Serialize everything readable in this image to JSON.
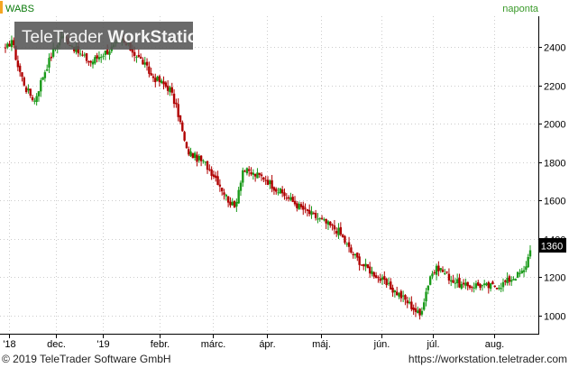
{
  "header": {
    "symbol": "WABS",
    "interval": "naponta"
  },
  "watermark": {
    "part1": "TeleTrader ",
    "part2": "WorkStation"
  },
  "footer": {
    "copyright": "© 2019 TeleTrader Software GmbH",
    "url": "https://workstation.teletrader.com"
  },
  "colors": {
    "up": "#1a9a1a",
    "down": "#b00000",
    "axis": "#000000",
    "grid": "#cccccc",
    "header_accent": "#f5a623",
    "interval_text": "#3a9a2a",
    "symbol_text": "#0a7a0a"
  },
  "chart_data": {
    "type": "candlestick",
    "title": "WABS",
    "ylim": [
      905,
      2560
    ],
    "y_ticks": [
      1000,
      1200,
      1400,
      1600,
      1800,
      2000,
      2200,
      2400
    ],
    "x_tick_labels": [
      "'18",
      "dec.",
      "'19",
      "febr.",
      "márc.",
      "ápr.",
      "máj.",
      "jún.",
      "júl.",
      "aug."
    ],
    "last_price": "1360",
    "series": [
      {
        "anchors": [
          [
            0,
            2380
          ],
          [
            3,
            2440
          ],
          [
            6,
            2300
          ],
          [
            10,
            2180
          ],
          [
            14,
            2120
          ],
          [
            18,
            2250
          ],
          [
            23,
            2380
          ],
          [
            27,
            2460
          ],
          [
            31,
            2420
          ],
          [
            36,
            2360
          ],
          [
            41,
            2320
          ],
          [
            46,
            2360
          ],
          [
            52,
            2400
          ],
          [
            56,
            2430
          ],
          [
            60,
            2390
          ],
          [
            66,
            2320
          ],
          [
            70,
            2250
          ],
          [
            74,
            2220
          ],
          [
            79,
            2180
          ],
          [
            83,
            2050
          ],
          [
            87,
            1860
          ],
          [
            92,
            1820
          ],
          [
            96,
            1790
          ],
          [
            101,
            1720
          ],
          [
            106,
            1620
          ],
          [
            110,
            1560
          ],
          [
            114,
            1760
          ],
          [
            118,
            1740
          ],
          [
            124,
            1720
          ],
          [
            130,
            1660
          ],
          [
            136,
            1610
          ],
          [
            142,
            1560
          ],
          [
            148,
            1520
          ],
          [
            154,
            1480
          ],
          [
            160,
            1440
          ],
          [
            166,
            1330
          ],
          [
            172,
            1260
          ],
          [
            178,
            1210
          ],
          [
            184,
            1150
          ],
          [
            189,
            1110
          ],
          [
            194,
            1060
          ],
          [
            199,
            1000
          ],
          [
            204,
            1210
          ],
          [
            208,
            1250
          ],
          [
            214,
            1190
          ],
          [
            220,
            1150
          ],
          [
            226,
            1160
          ],
          [
            232,
            1150
          ],
          [
            238,
            1160
          ],
          [
            244,
            1200
          ],
          [
            249,
            1230
          ],
          [
            252,
            1340
          ]
        ]
      }
    ]
  }
}
